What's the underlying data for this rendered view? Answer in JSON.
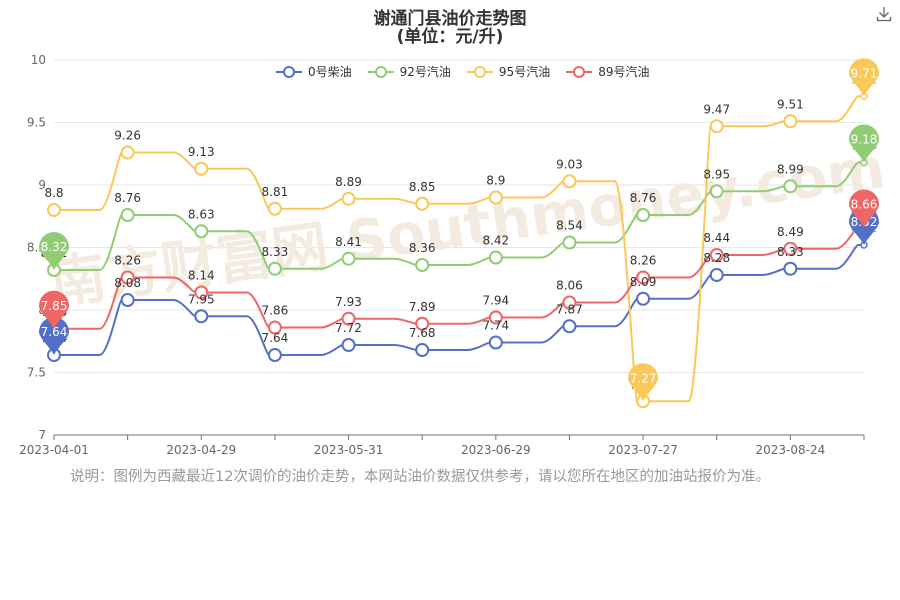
{
  "title_line1": "谢通门县油价走势图",
  "title_line2": "(单位：元/升)",
  "watermark": "南方财富网 Southmoney.com",
  "note": "说明：图例为西藏最近12次调价的油价走势，本网站油价数据仅供参考，请以您所在地区的加油站报价为准。",
  "icons": {
    "download": "download-icon"
  },
  "chart_data": {
    "type": "line",
    "x_tick_labels": [
      "2023-04-01",
      "2023-04-29",
      "2023-05-31",
      "2023-06-29",
      "2023-07-27",
      "2023-08-24"
    ],
    "y_ticks": [
      "7",
      "7.5",
      "8",
      "8.5",
      "9",
      "9.5",
      "10"
    ],
    "ylim": [
      7,
      10
    ],
    "grid": true,
    "legend_position": "top-center",
    "series": [
      {
        "name": "0号柴油",
        "color": "#5470c6",
        "values": [
          7.64,
          8.08,
          7.95,
          7.64,
          7.72,
          7.68,
          7.74,
          7.87,
          8.09,
          8.28,
          8.33,
          8.52
        ],
        "labels": [
          "7.64",
          "8.08",
          "7.95",
          "7.64",
          "7.72",
          "7.68",
          "7.74",
          "7.87",
          "8.09",
          "8.28",
          "8.33",
          "8.52"
        ]
      },
      {
        "name": "92号汽油",
        "color": "#91cc75",
        "values": [
          8.32,
          8.76,
          8.63,
          8.33,
          8.41,
          8.36,
          8.42,
          8.54,
          8.76,
          8.95,
          8.99,
          9.18
        ],
        "labels": [
          "8.32",
          "8.76",
          "8.63",
          "8.33",
          "8.41",
          "8.36",
          "8.42",
          "8.54",
          "8.76",
          "8.95",
          "8.99",
          "9.18"
        ]
      },
      {
        "name": "95号汽油",
        "color": "#fac858",
        "values": [
          8.8,
          9.26,
          9.13,
          8.81,
          8.89,
          8.85,
          8.9,
          9.03,
          7.27,
          9.47,
          9.51,
          9.71
        ],
        "labels": [
          "8.8",
          "9.26",
          "9.13",
          "8.81",
          "8.89",
          "8.85",
          "8.9",
          "9.03",
          "7.27",
          "9.47",
          "9.51",
          "9.71"
        ]
      },
      {
        "name": "89号汽油",
        "color": "#ee6666",
        "values": [
          7.85,
          8.26,
          8.14,
          7.86,
          7.93,
          7.89,
          7.94,
          8.06,
          8.26,
          8.44,
          8.49,
          8.66
        ],
        "labels": [
          "7.85",
          "8.26",
          "8.14",
          "7.86",
          "7.93",
          "7.89",
          "7.94",
          "8.06",
          "8.26",
          "8.44",
          "8.49",
          "8.66"
        ]
      }
    ],
    "max_pins": [
      {
        "series": 0,
        "index": 11,
        "label": "8.52"
      },
      {
        "series": 1,
        "index": 11,
        "label": "9.18"
      },
      {
        "series": 2,
        "index": 11,
        "label": "9.71"
      },
      {
        "series": 3,
        "index": 11,
        "label": "8.66"
      }
    ],
    "min_pins": [
      {
        "series": 0,
        "index": 0,
        "label": "7.64"
      },
      {
        "series": 1,
        "index": 0,
        "label": "8.32"
      },
      {
        "series": 2,
        "index": 8,
        "label": "7.27"
      },
      {
        "series": 3,
        "index": 0,
        "label": "7.85"
      }
    ]
  }
}
